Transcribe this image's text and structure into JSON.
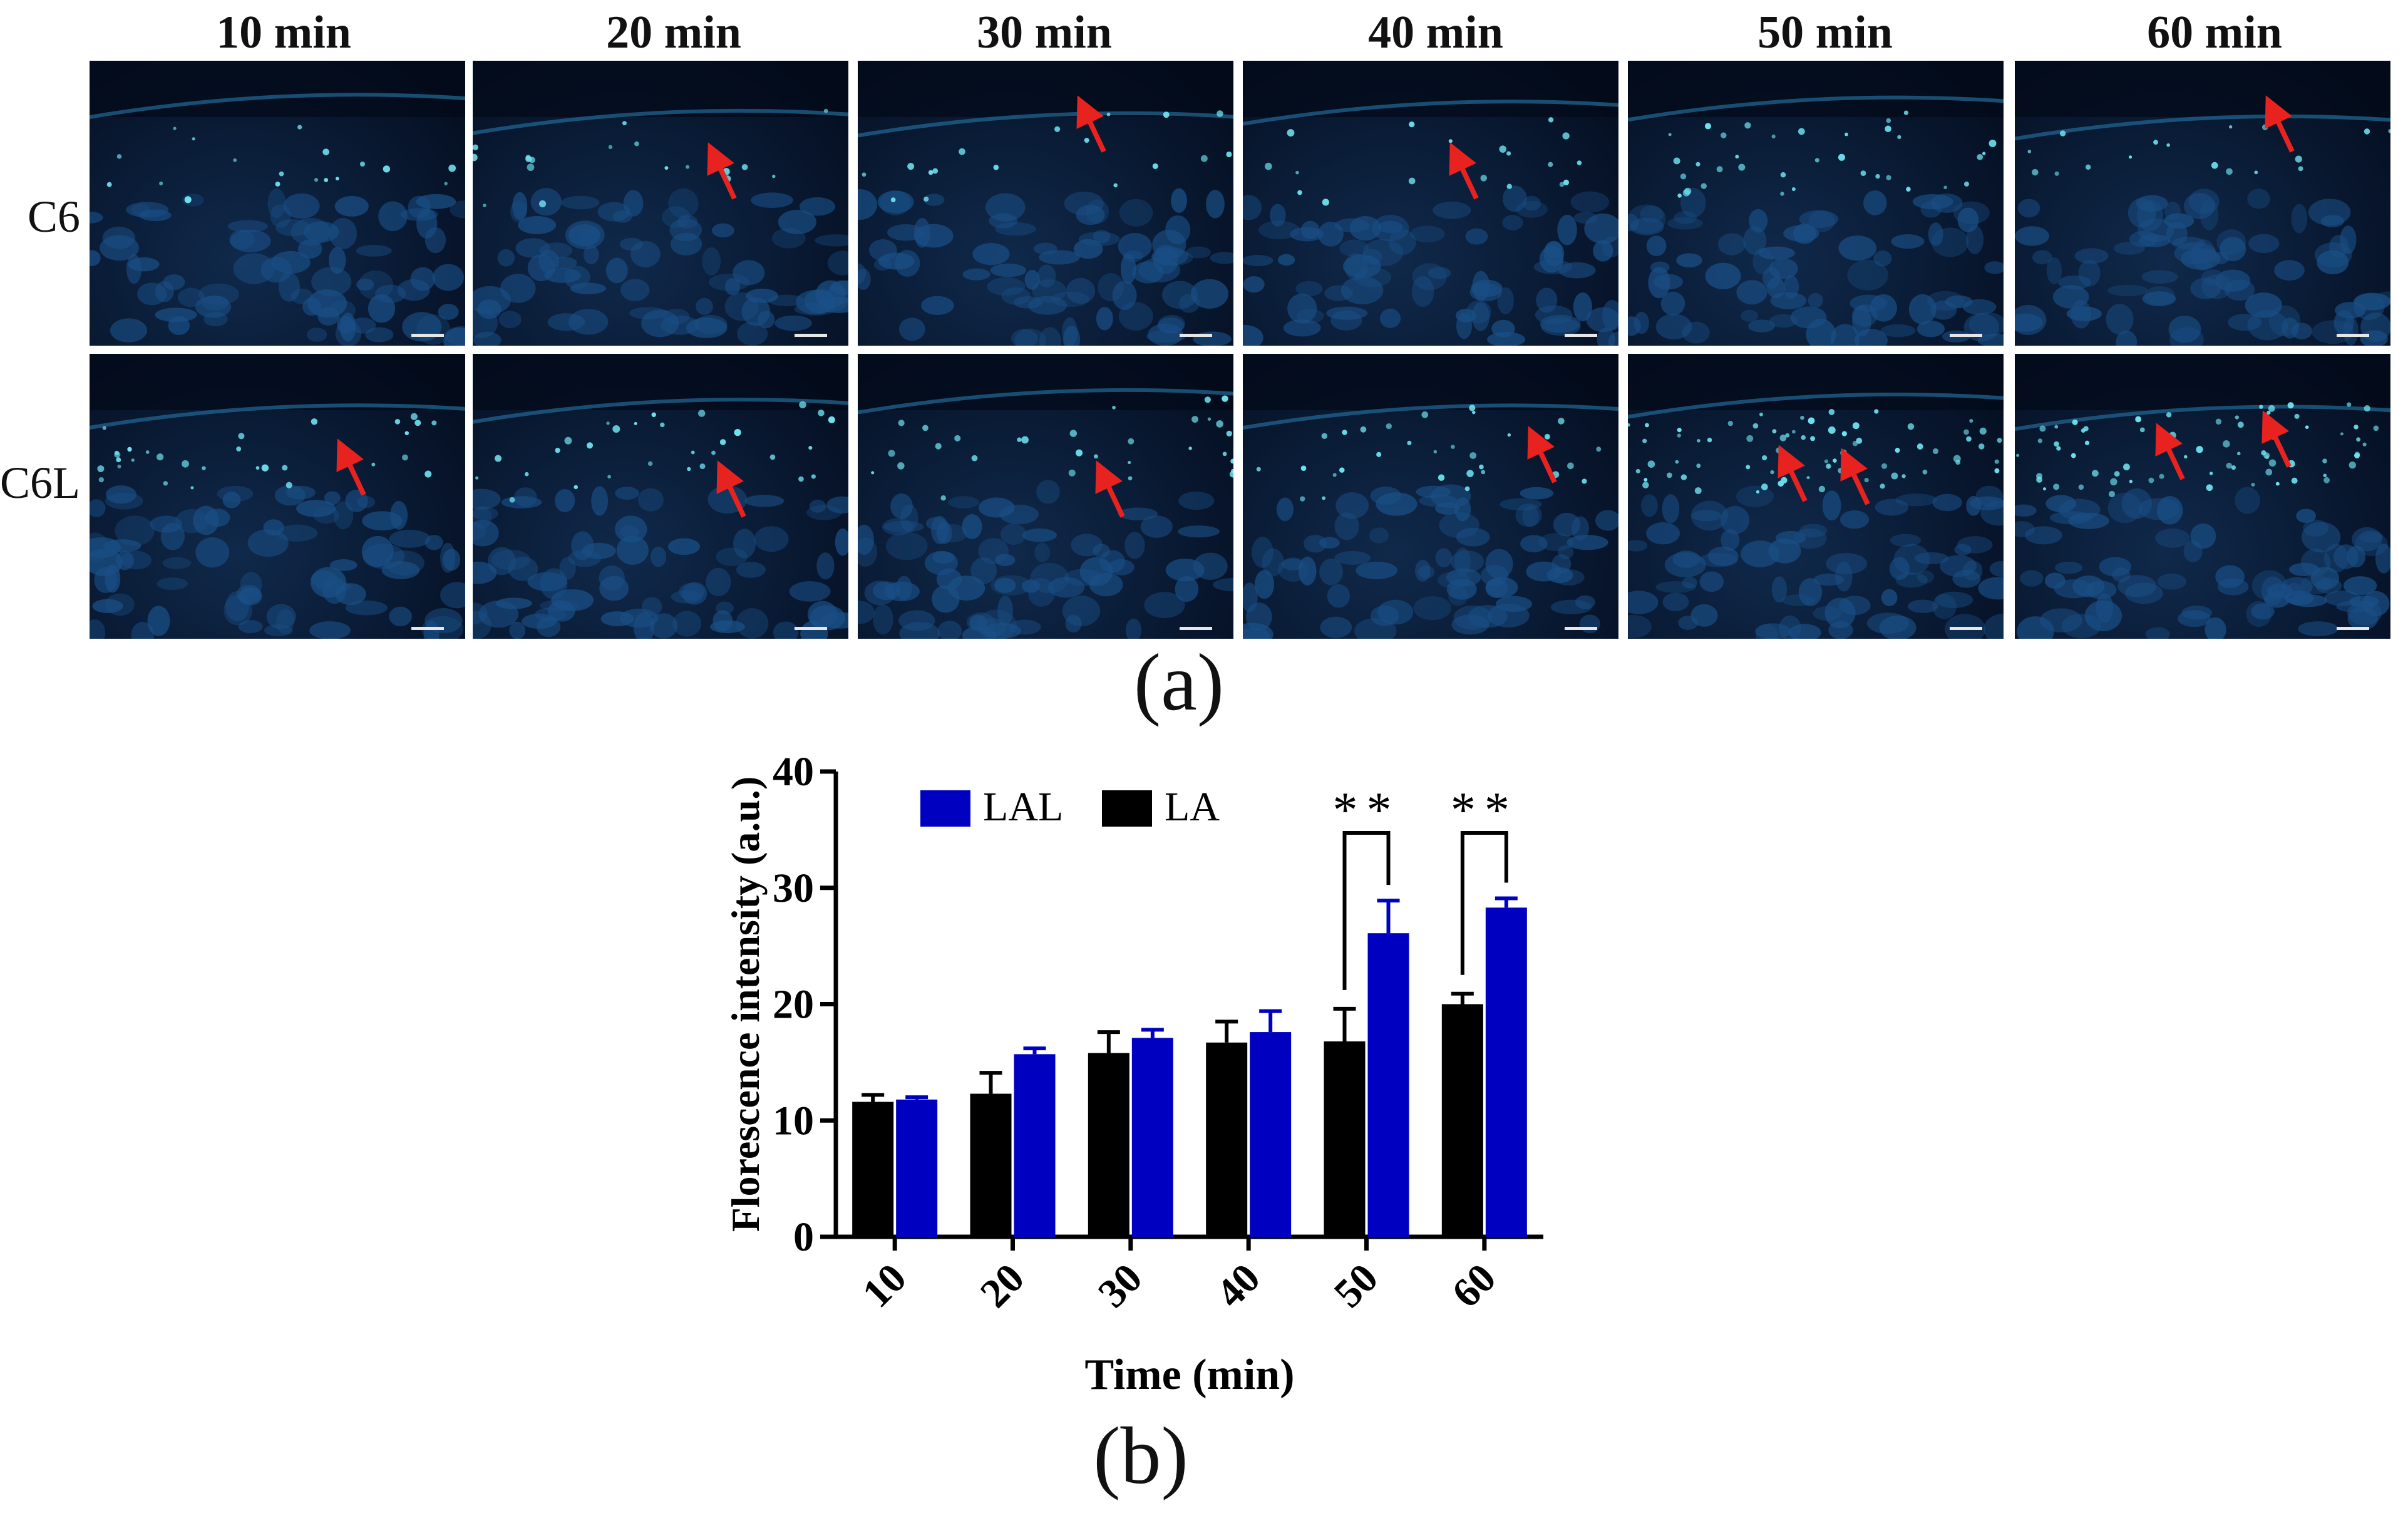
{
  "figure_a": {
    "label": "(a)",
    "column_headers": [
      "10 min",
      "20 min",
      "30 min",
      "40 min",
      "50 min",
      "60 min"
    ],
    "row_labels": [
      "C6",
      "C6L"
    ],
    "arrow_color": "#e8231f",
    "nucleus_color": "#6fe2ef",
    "tissue_color": "#0d2b55"
  },
  "figure_b": {
    "label": "(b)"
  },
  "chart_data": {
    "type": "bar",
    "title": "",
    "xlabel": "Time (min)",
    "ylabel": "Florescence intensity (a.u.)",
    "categories": [
      "10",
      "20",
      "30",
      "40",
      "50",
      "60"
    ],
    "ylim": [
      0,
      40
    ],
    "yticks": [
      "0",
      "10",
      "20",
      "30",
      "40"
    ],
    "series": [
      {
        "name": "LA",
        "color": "#000000",
        "values": [
          11.6,
          12.3,
          15.8,
          16.7,
          16.8,
          20.0
        ],
        "errors": [
          0.6,
          1.8,
          1.8,
          1.8,
          2.8,
          0.9
        ]
      },
      {
        "name": "LAL",
        "color": "#0000c0",
        "values": [
          11.8,
          15.7,
          17.1,
          17.6,
          26.1,
          28.3
        ],
        "errors": [
          0.2,
          0.5,
          0.7,
          1.8,
          2.8,
          0.8
        ]
      }
    ],
    "legend": [
      "LAL",
      "LA"
    ],
    "legend_position": "top-left",
    "annotations": [
      {
        "category": "50",
        "text": "**"
      },
      {
        "category": "60",
        "text": "**"
      }
    ]
  }
}
